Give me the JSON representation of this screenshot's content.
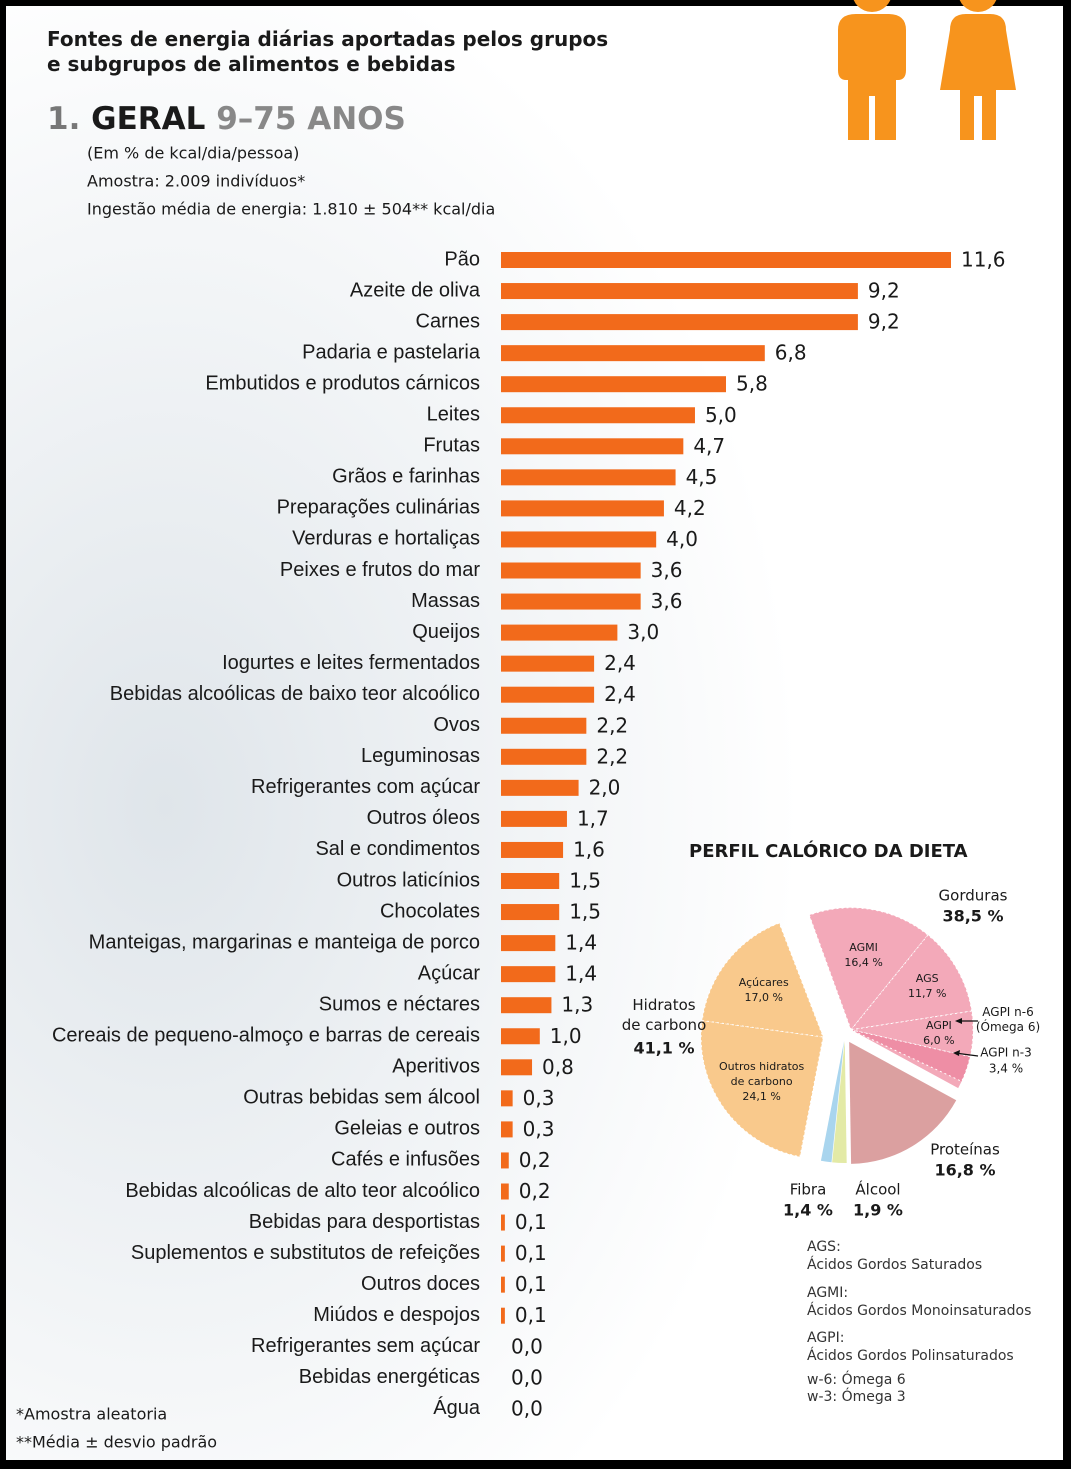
{
  "chart_data": [
    {
      "type": "bar",
      "title": "Fontes de energia diárias aportadas pelos grupos\ne subgrupos de alimentos e bebidas",
      "section_number": "1.",
      "section": "GERAL",
      "age_range": "9–75 ANOS",
      "subtitles": [
        "(Em % de kcal/dia/pessoa)",
        "Amostra: 2.009 indivíduos*",
        "Ingestão média de energia: 1.810 ± 504** kcal/dia"
      ],
      "categories": [
        "Pão",
        "Azeite de oliva",
        "Carnes",
        "Padaria e pastelaria",
        "Embutidos e produtos cárnicos",
        "Leites",
        "Frutas",
        "Grãos e farinhas",
        "Preparações culinárias",
        "Verduras e hortaliças",
        "Peixes e frutos do mar",
        "Massas",
        "Queijos",
        "Iogurtes e leites fermentados",
        "Bebidas alcoólicas de baixo teor alcoólico",
        "Ovos",
        "Leguminosas",
        "Refrigerantes com açúcar",
        "Outros óleos",
        "Sal e condimentos",
        "Outros laticínios",
        "Chocolates",
        "Manteigas, margarinas e manteiga de porco",
        "Açúcar",
        "Sumos e néctares",
        "Cereais de pequeno-almoço e barras de cereais",
        "Aperitivos",
        "Outras bebidas sem álcool",
        "Geleias e outros",
        "Cafés e infusões",
        "Bebidas alcoólicas de alto teor alcoólico",
        "Bebidas para desportistas",
        "Suplementos e substitutos de refeições",
        "Outros doces",
        "Miúdos e despojos",
        "Refrigerantes sem açúcar",
        "Bebidas energéticas",
        "Água"
      ],
      "values": [
        11.6,
        9.2,
        9.2,
        6.8,
        5.8,
        5.0,
        4.7,
        4.5,
        4.2,
        4.0,
        3.6,
        3.6,
        3.0,
        2.4,
        2.4,
        2.2,
        2.2,
        2.0,
        1.7,
        1.6,
        1.5,
        1.5,
        1.4,
        1.4,
        1.3,
        1.0,
        0.8,
        0.3,
        0.3,
        0.2,
        0.2,
        0.1,
        0.1,
        0.1,
        0.1,
        0.0,
        0.0,
        0.0
      ],
      "value_labels": [
        "11,6",
        "9,2",
        "9,2",
        "6,8",
        "5,8",
        "5,0",
        "4,7",
        "4,5",
        "4,2",
        "4,0",
        "3,6",
        "3,6",
        "3,0",
        "2,4",
        "2,4",
        "2,2",
        "2,2",
        "2,0",
        "1,7",
        "1,6",
        "1,5",
        "1,5",
        "1,4",
        "1,4",
        "1,3",
        "1,0",
        "0,8",
        "0,3",
        "0,3",
        "0,2",
        "0,2",
        "0,1",
        "0,1",
        "0,1",
        "0,1",
        "0,0",
        "0,0",
        "0,0"
      ],
      "color": "#f26a1b",
      "notes": [
        "*Amostra aleatoria",
        "**Média ± desvio padrão"
      ]
    },
    {
      "type": "pie",
      "title": "PERFIL CALÓRICO DA DIETA",
      "categories": [
        "Gorduras",
        "Proteínas",
        "Álcool",
        "Fibra",
        "Hidratos\nde carbono"
      ],
      "values": [
        38.5,
        16.8,
        1.9,
        1.4,
        41.1
      ],
      "value_labels": [
        "38,5 %",
        "16,8 %",
        "1,9 %",
        "1,4 %",
        "41,1 %"
      ],
      "colors": [
        "#f3a9b9",
        "#dba0a0",
        "#e3eaa6",
        "#a9d5ee",
        "#f9c98c"
      ],
      "subdivisions": [
        {
          "categories": [
            "AGMI",
            "AGS",
            "AGPI",
            "AGPI n-3"
          ],
          "values": [
            16.4,
            11.7,
            6.0,
            3.4
          ],
          "value_labels": [
            "16,4 %",
            "11,7 %",
            "6,0 %",
            "3,4 %"
          ],
          "annotation": "AGPI n-6\n(Ómega 6)"
        },
        null,
        null,
        null,
        {
          "categories": [
            "Outros hidratos\nde carbono",
            "Açúcares"
          ],
          "values": [
            24.1,
            17.0
          ],
          "value_labels": [
            "24,1 %",
            "17,0 %"
          ]
        }
      ],
      "glossary": [
        "AGS:\nÁcidos Gordos Saturados",
        "AGMI:\nÁcidos Gordos Monoinsaturados",
        "AGPI:\nÁcidos Gordos Polinsaturados",
        "w-6: Ómega 6",
        "w-3: Ómega 3"
      ]
    }
  ]
}
